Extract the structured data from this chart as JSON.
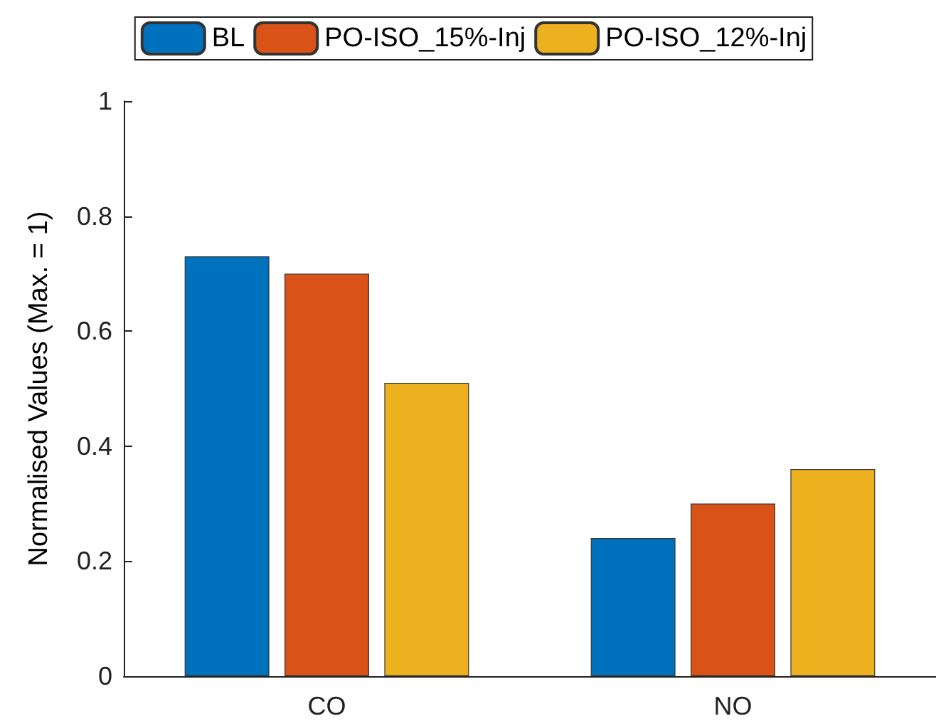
{
  "chart_data": {
    "type": "bar",
    "ylabel": "Normalised Values (Max. = 1)",
    "categories": [
      "CO",
      "NO"
    ],
    "series": [
      {
        "name": "BL",
        "color": "#0072bd",
        "values": [
          0.73,
          0.24
        ]
      },
      {
        "name": "PO-ISO_15%-Inj",
        "color": "#d95319",
        "values": [
          0.7,
          0.3
        ]
      },
      {
        "name": "PO-ISO_12%-Inj",
        "color": "#edb120",
        "values": [
          0.51,
          0.36
        ]
      }
    ],
    "ylim": [
      0,
      1
    ],
    "yticks": [
      0,
      0.2,
      0.4,
      0.6,
      0.8,
      1
    ],
    "grid": false,
    "legend": "top"
  }
}
